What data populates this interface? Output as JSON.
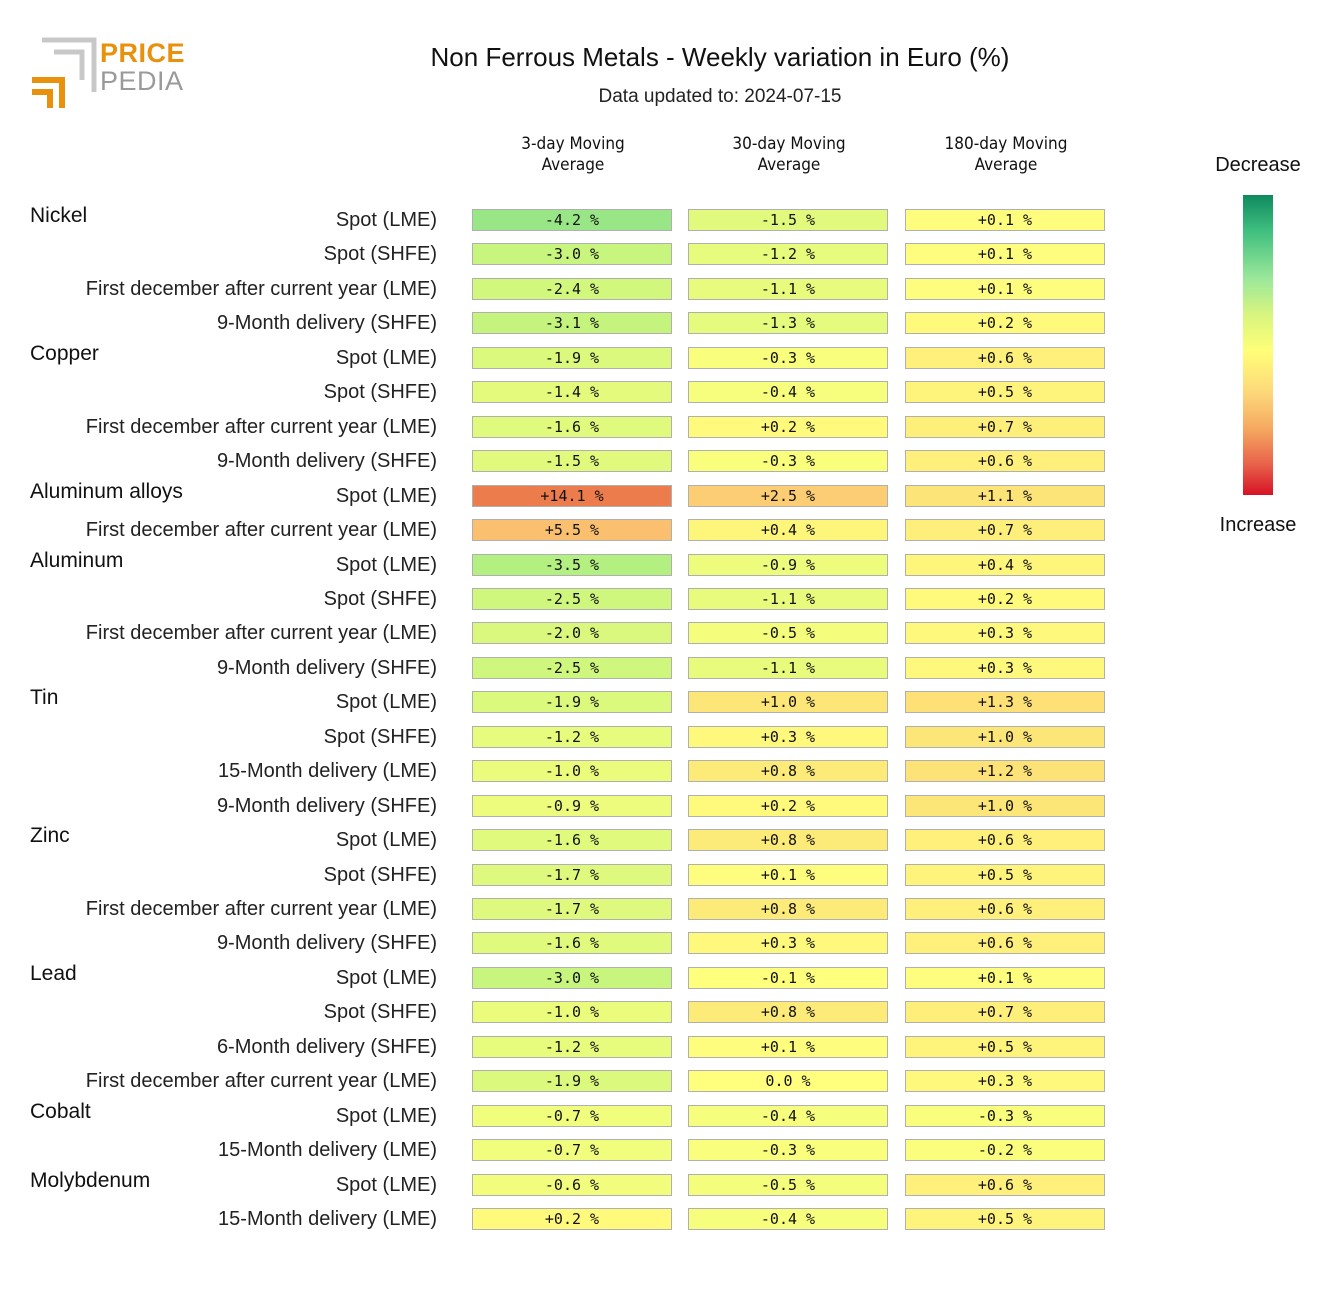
{
  "logo": {
    "top": "PRICE",
    "bottom": "PEDIA"
  },
  "title": "Non Ferrous Metals - Weekly variation in Euro (%)",
  "subtitle": "Data updated to: 2024-07-15",
  "legend": {
    "top": "Decrease",
    "bottom": "Increase"
  },
  "colors": {
    "min": "#0f8a5f",
    "max": "#d61225"
  },
  "chart_data": {
    "type": "table",
    "title": "Non Ferrous Metals - Weekly variation in Euro (%)",
    "columns": [
      "3-day Moving\nAverage",
      "30-day Moving\nAverage",
      "180-day Moving\nAverage"
    ],
    "groups": [
      {
        "name": "Nickel",
        "rows": [
          {
            "label": "Spot (LME)",
            "values": [
              -4.2,
              -1.5,
              0.1
            ],
            "text": [
              "-4.2 %",
              "-1.5 %",
              "+0.1 %"
            ]
          },
          {
            "label": "Spot (SHFE)",
            "values": [
              -3.0,
              -1.2,
              0.1
            ],
            "text": [
              "-3.0 %",
              "-1.2 %",
              "+0.1 %"
            ]
          },
          {
            "label": "First december after current year (LME)",
            "values": [
              -2.4,
              -1.1,
              0.1
            ],
            "text": [
              "-2.4 %",
              "-1.1 %",
              "+0.1 %"
            ]
          },
          {
            "label": "9-Month delivery (SHFE)",
            "values": [
              -3.1,
              -1.3,
              0.2
            ],
            "text": [
              "-3.1 %",
              "-1.3 %",
              "+0.2 %"
            ]
          }
        ]
      },
      {
        "name": "Copper",
        "rows": [
          {
            "label": "Spot (LME)",
            "values": [
              -1.9,
              -0.3,
              0.6
            ],
            "text": [
              "-1.9 %",
              "-0.3 %",
              "+0.6 %"
            ]
          },
          {
            "label": "Spot (SHFE)",
            "values": [
              -1.4,
              -0.4,
              0.5
            ],
            "text": [
              "-1.4 %",
              "-0.4 %",
              "+0.5 %"
            ]
          },
          {
            "label": "First december after current year (LME)",
            "values": [
              -1.6,
              0.2,
              0.7
            ],
            "text": [
              "-1.6 %",
              "+0.2 %",
              "+0.7 %"
            ]
          },
          {
            "label": "9-Month delivery (SHFE)",
            "values": [
              -1.5,
              -0.3,
              0.6
            ],
            "text": [
              "-1.5 %",
              "-0.3 %",
              "+0.6 %"
            ]
          }
        ]
      },
      {
        "name": "Aluminum alloys",
        "rows": [
          {
            "label": "Spot (LME)",
            "values": [
              14.1,
              2.5,
              1.1
            ],
            "text": [
              "+14.1 %",
              "+2.5 %",
              "+1.1 %"
            ]
          },
          {
            "label": "First december after current year (LME)",
            "values": [
              5.5,
              0.4,
              0.7
            ],
            "text": [
              "+5.5 %",
              "+0.4 %",
              "+0.7 %"
            ]
          }
        ]
      },
      {
        "name": "Aluminum",
        "rows": [
          {
            "label": "Spot (LME)",
            "values": [
              -3.5,
              -0.9,
              0.4
            ],
            "text": [
              "-3.5 %",
              "-0.9 %",
              "+0.4 %"
            ]
          },
          {
            "label": "Spot (SHFE)",
            "values": [
              -2.5,
              -1.1,
              0.2
            ],
            "text": [
              "-2.5 %",
              "-1.1 %",
              "+0.2 %"
            ]
          },
          {
            "label": "First december after current year (LME)",
            "values": [
              -2.0,
              -0.5,
              0.3
            ],
            "text": [
              "-2.0 %",
              "-0.5 %",
              "+0.3 %"
            ]
          },
          {
            "label": "9-Month delivery (SHFE)",
            "values": [
              -2.5,
              -1.1,
              0.3
            ],
            "text": [
              "-2.5 %",
              "-1.1 %",
              "+0.3 %"
            ]
          }
        ]
      },
      {
        "name": "Tin",
        "rows": [
          {
            "label": "Spot (LME)",
            "values": [
              -1.9,
              1.0,
              1.3
            ],
            "text": [
              "-1.9 %",
              "+1.0 %",
              "+1.3 %"
            ]
          },
          {
            "label": "Spot (SHFE)",
            "values": [
              -1.2,
              0.3,
              1.0
            ],
            "text": [
              "-1.2 %",
              "+0.3 %",
              "+1.0 %"
            ]
          },
          {
            "label": "15-Month delivery (LME)",
            "values": [
              -1.0,
              0.8,
              1.2
            ],
            "text": [
              "-1.0 %",
              "+0.8 %",
              "+1.2 %"
            ]
          },
          {
            "label": "9-Month delivery (SHFE)",
            "values": [
              -0.9,
              0.2,
              1.0
            ],
            "text": [
              "-0.9 %",
              "+0.2 %",
              "+1.0 %"
            ]
          }
        ]
      },
      {
        "name": "Zinc",
        "rows": [
          {
            "label": "Spot (LME)",
            "values": [
              -1.6,
              0.8,
              0.6
            ],
            "text": [
              "-1.6 %",
              "+0.8 %",
              "+0.6 %"
            ]
          },
          {
            "label": "Spot (SHFE)",
            "values": [
              -1.7,
              0.1,
              0.5
            ],
            "text": [
              "-1.7 %",
              "+0.1 %",
              "+0.5 %"
            ]
          },
          {
            "label": "First december after current year (LME)",
            "values": [
              -1.7,
              0.8,
              0.6
            ],
            "text": [
              "-1.7 %",
              "+0.8 %",
              "+0.6 %"
            ]
          },
          {
            "label": "9-Month delivery (SHFE)",
            "values": [
              -1.6,
              0.3,
              0.6
            ],
            "text": [
              "-1.6 %",
              "+0.3 %",
              "+0.6 %"
            ]
          }
        ]
      },
      {
        "name": "Lead",
        "rows": [
          {
            "label": "Spot (LME)",
            "values": [
              -3.0,
              -0.1,
              0.1
            ],
            "text": [
              "-3.0 %",
              "-0.1 %",
              "+0.1 %"
            ]
          },
          {
            "label": "Spot (SHFE)",
            "values": [
              -1.0,
              0.8,
              0.7
            ],
            "text": [
              "-1.0 %",
              "+0.8 %",
              "+0.7 %"
            ]
          },
          {
            "label": "6-Month delivery (SHFE)",
            "values": [
              -1.2,
              0.1,
              0.5
            ],
            "text": [
              "-1.2 %",
              "+0.1 %",
              "+0.5 %"
            ]
          },
          {
            "label": "First december after current year (LME)",
            "values": [
              -1.9,
              0.0,
              0.3
            ],
            "text": [
              "-1.9 %",
              "0.0 %",
              "+0.3 %"
            ]
          }
        ]
      },
      {
        "name": "Cobalt",
        "rows": [
          {
            "label": "Spot (LME)",
            "values": [
              -0.7,
              -0.4,
              -0.3
            ],
            "text": [
              "-0.7 %",
              "-0.4 %",
              "-0.3 %"
            ]
          },
          {
            "label": "15-Month delivery (LME)",
            "values": [
              -0.7,
              -0.3,
              -0.2
            ],
            "text": [
              "-0.7 %",
              "-0.3 %",
              "-0.2 %"
            ]
          }
        ]
      },
      {
        "name": "Molybdenum",
        "rows": [
          {
            "label": "Spot (LME)",
            "values": [
              -0.6,
              -0.5,
              0.6
            ],
            "text": [
              "-0.6 %",
              "-0.5 %",
              "+0.6 %"
            ]
          },
          {
            "label": "15-Month delivery (LME)",
            "values": [
              0.2,
              -0.4,
              0.5
            ],
            "text": [
              "+0.2 %",
              "-0.4 %",
              "+0.5 %"
            ]
          }
        ]
      }
    ]
  }
}
